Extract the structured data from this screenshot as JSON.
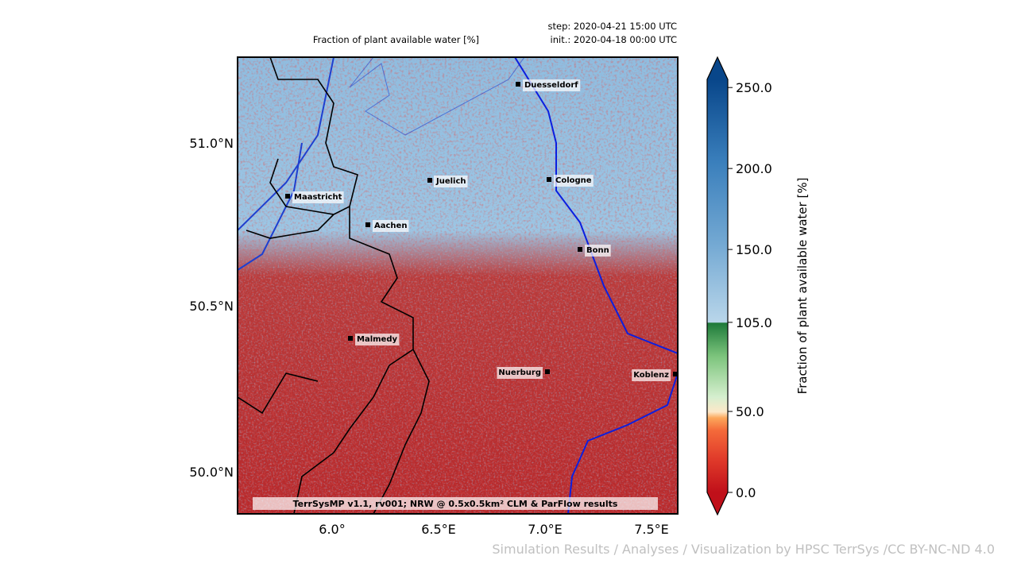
{
  "header": {
    "title": "Fraction of plant available water [%]",
    "step": "step: 2020-04-21 15:00 UTC",
    "init": "init.: 2020-04-18 00:00 UTC"
  },
  "map": {
    "lat_labels": [
      "51.0°N",
      "50.5°N",
      "50.0°N"
    ],
    "lon_labels": [
      "6.0°",
      "6.5°E",
      "7.0°E",
      "7.5°E"
    ],
    "cities": [
      "Duesseldorf",
      "Juelich",
      "Cologne",
      "Maastricht",
      "Aachen",
      "Bonn",
      "Malmedy",
      "Nuerburg",
      "Koblenz"
    ],
    "footer": "TerrSysMP v1.1, rv001; NRW @ 0.5x0.5km² CLM & ParFlow results"
  },
  "colorbar": {
    "label": "Fraction of plant available water [%]",
    "lim": [
      0,
      255
    ],
    "ticks": [
      {
        "value": 0,
        "label": "0.0"
      },
      {
        "value": 50,
        "label": "50.0"
      },
      {
        "value": 105,
        "label": "105.0"
      },
      {
        "value": 150,
        "label": "150.0"
      },
      {
        "value": 200,
        "label": "200.0"
      },
      {
        "value": 250,
        "label": "250.0"
      }
    ]
  },
  "watermark": "Simulation Results / Analyses / Visualization by HPSC TerrSys /CC BY-NC-ND 4.0"
}
